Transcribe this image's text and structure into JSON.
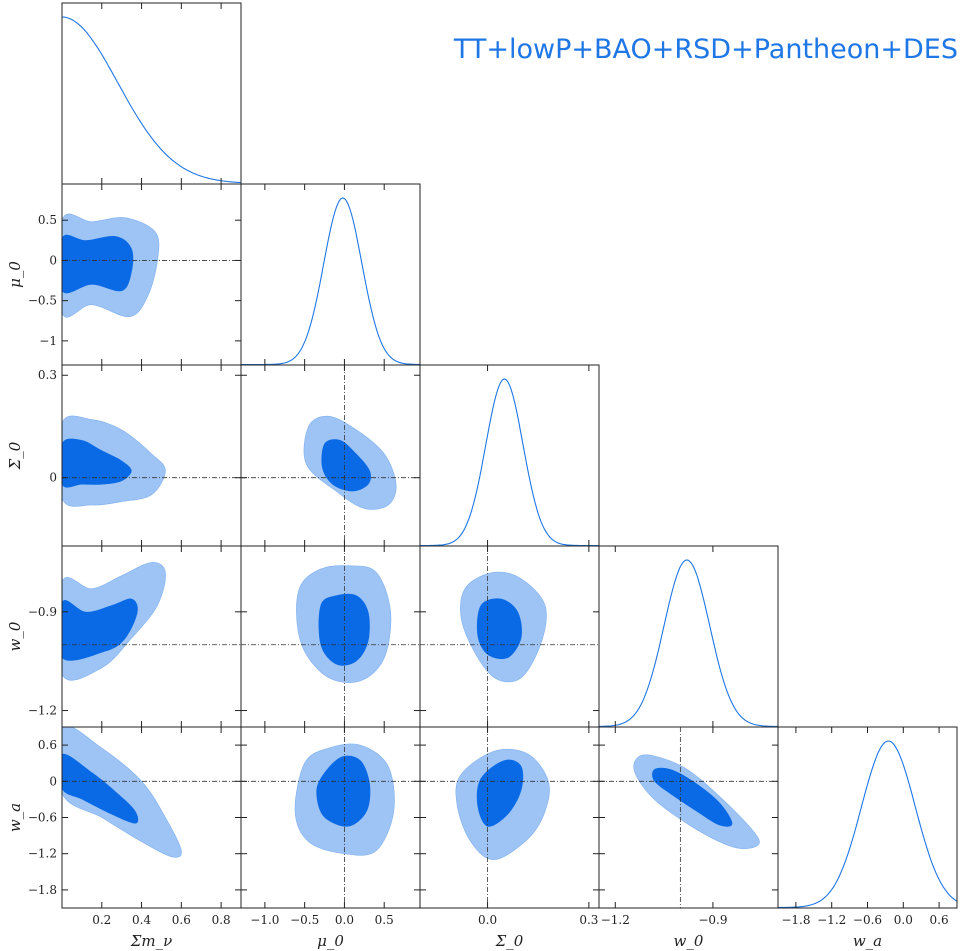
{
  "chart_data": {
    "type": "triangle-corner",
    "legend": {
      "label": "TT+lowP+BAO+RSD+Pantheon+DES",
      "color": "#1f77e6",
      "placement": "top-right"
    },
    "colors": {
      "inner": "#0a6ae6",
      "outer": "#9ec4f5",
      "line": "#1f77e6",
      "frame": "#222222",
      "ref": "#333333"
    },
    "parameters": [
      {
        "id": "mnu",
        "label": "Σm_ν",
        "range": [
          0.0,
          0.9
        ],
        "ticks": [
          0.2,
          0.4,
          0.6,
          0.8
        ],
        "tick_labels": [
          "0.2",
          "0.4",
          "0.6",
          "0.8"
        ],
        "fiducial": null
      },
      {
        "id": "mu0",
        "label": "μ_0",
        "range": [
          -1.3,
          0.95
        ],
        "ticks": [
          -1.0,
          -0.5,
          0.0,
          0.5
        ],
        "tick_labels": [
          "−1.0",
          "−0.5",
          "0.0",
          "0.5"
        ],
        "y_ticks": [
          0.5,
          0.0,
          -0.5,
          -1.0
        ],
        "y_tick_labels": [
          "0.5",
          "0",
          "−0.5",
          "−1"
        ],
        "fiducial": 0
      },
      {
        "id": "sigma0",
        "label": "Σ_0",
        "range": [
          -0.2,
          0.33
        ],
        "ticks": [
          0.0,
          0.3
        ],
        "tick_labels": [
          "0.0",
          "0.3"
        ],
        "y_ticks": [
          0.3,
          0.0
        ],
        "y_tick_labels": [
          "0.3",
          "0"
        ],
        "fiducial": 0
      },
      {
        "id": "w0",
        "label": "w_0",
        "range": [
          -1.25,
          -0.7
        ],
        "ticks": [
          -1.2,
          -0.9
        ],
        "tick_labels": [
          "−1.2",
          "−0.9"
        ],
        "y_ticks": [
          -0.9,
          -1.2
        ],
        "y_tick_labels": [
          "−0.9",
          "−1.2"
        ],
        "fiducial": -1
      },
      {
        "id": "wa",
        "label": "w_a",
        "range": [
          -2.1,
          0.9
        ],
        "ticks": [
          -1.8,
          -1.2,
          -0.6,
          0.0,
          0.6
        ],
        "tick_labels": [
          "−1.8",
          "−1.2",
          "−0.6",
          "0.0",
          "0.6"
        ],
        "y_ticks": [
          0.6,
          0.0,
          -0.6,
          -1.2,
          -1.8
        ],
        "y_tick_labels": [
          "0.6",
          "0",
          "−0.6",
          "−1.2",
          "−1.8"
        ],
        "fiducial": 0
      }
    ],
    "marginals": [
      {
        "param": "mnu",
        "kind": "half-gaussian",
        "mean": 0.0,
        "sd": 0.28
      },
      {
        "param": "mu0",
        "kind": "gaussian",
        "mean": -0.02,
        "sd": 0.24
      },
      {
        "param": "sigma0",
        "kind": "gaussian",
        "mean": 0.05,
        "sd": 0.055
      },
      {
        "param": "w0",
        "kind": "gaussian",
        "mean": -0.98,
        "sd": 0.07
      },
      {
        "param": "wa",
        "kind": "gaussian",
        "mean": -0.25,
        "sd": 0.45
      }
    ],
    "contours": [
      {
        "x": "mnu",
        "y": "mu0",
        "outer": [
          [
            0.0,
            0.5
          ],
          [
            0.15,
            0.48
          ],
          [
            0.32,
            0.53
          ],
          [
            0.47,
            0.35
          ],
          [
            0.48,
            0.0
          ],
          [
            0.43,
            -0.45
          ],
          [
            0.34,
            -0.7
          ],
          [
            0.15,
            -0.55
          ],
          [
            0.0,
            -0.65
          ]
        ],
        "inner": [
          [
            0.0,
            0.28
          ],
          [
            0.12,
            0.25
          ],
          [
            0.27,
            0.3
          ],
          [
            0.35,
            0.15
          ],
          [
            0.35,
            -0.15
          ],
          [
            0.3,
            -0.38
          ],
          [
            0.15,
            -0.3
          ],
          [
            0.0,
            -0.38
          ]
        ]
      },
      {
        "x": "mnu",
        "y": "sigma0",
        "outer": [
          [
            0.0,
            0.16
          ],
          [
            0.15,
            0.17
          ],
          [
            0.3,
            0.14
          ],
          [
            0.45,
            0.07
          ],
          [
            0.52,
            0.02
          ],
          [
            0.45,
            -0.05
          ],
          [
            0.3,
            -0.07
          ],
          [
            0.15,
            -0.08
          ],
          [
            0.0,
            -0.06
          ]
        ],
        "inner": [
          [
            0.0,
            0.1
          ],
          [
            0.1,
            0.11
          ],
          [
            0.2,
            0.08
          ],
          [
            0.3,
            0.05
          ],
          [
            0.35,
            0.02
          ],
          [
            0.3,
            -0.01
          ],
          [
            0.2,
            -0.02
          ],
          [
            0.1,
            -0.02
          ],
          [
            0.0,
            -0.02
          ]
        ]
      },
      {
        "x": "mnu",
        "y": "w0",
        "outer": [
          [
            0.0,
            -0.81
          ],
          [
            0.15,
            -0.83
          ],
          [
            0.3,
            -0.79
          ],
          [
            0.45,
            -0.75
          ],
          [
            0.52,
            -0.78
          ],
          [
            0.48,
            -0.88
          ],
          [
            0.35,
            -0.98
          ],
          [
            0.2,
            -1.07
          ],
          [
            0.0,
            -1.09
          ]
        ],
        "inner": [
          [
            0.0,
            -0.87
          ],
          [
            0.12,
            -0.9
          ],
          [
            0.25,
            -0.88
          ],
          [
            0.35,
            -0.86
          ],
          [
            0.38,
            -0.9
          ],
          [
            0.32,
            -0.98
          ],
          [
            0.22,
            -1.02
          ],
          [
            0.0,
            -1.04
          ]
        ]
      },
      {
        "x": "mnu",
        "y": "wa",
        "outer": [
          [
            0.0,
            0.9
          ],
          [
            0.2,
            0.55
          ],
          [
            0.4,
            0.0
          ],
          [
            0.52,
            -0.6
          ],
          [
            0.6,
            -1.15
          ],
          [
            0.55,
            -1.25
          ],
          [
            0.4,
            -1.0
          ],
          [
            0.2,
            -0.6
          ],
          [
            0.0,
            -0.2
          ]
        ],
        "inner": [
          [
            0.0,
            0.45
          ],
          [
            0.15,
            0.15
          ],
          [
            0.28,
            -0.2
          ],
          [
            0.37,
            -0.5
          ],
          [
            0.37,
            -0.7
          ],
          [
            0.25,
            -0.55
          ],
          [
            0.1,
            -0.3
          ],
          [
            0.0,
            -0.12
          ]
        ]
      },
      {
        "x": "mu0",
        "y": "sigma0",
        "outer": [
          [
            -0.45,
            0.15
          ],
          [
            -0.2,
            0.18
          ],
          [
            0.15,
            0.14
          ],
          [
            0.5,
            0.07
          ],
          [
            0.65,
            -0.02
          ],
          [
            0.55,
            -0.08
          ],
          [
            0.25,
            -0.09
          ],
          [
            -0.1,
            -0.04
          ],
          [
            -0.48,
            0.04
          ]
        ],
        "inner": [
          [
            -0.25,
            0.1
          ],
          [
            -0.05,
            0.11
          ],
          [
            0.15,
            0.07
          ],
          [
            0.32,
            0.02
          ],
          [
            0.3,
            -0.02
          ],
          [
            0.1,
            -0.04
          ],
          [
            -0.15,
            -0.02
          ],
          [
            -0.28,
            0.03
          ]
        ]
      },
      {
        "x": "mu0",
        "y": "w0",
        "outer": [
          [
            -0.55,
            -0.82
          ],
          [
            -0.3,
            -0.77
          ],
          [
            0.05,
            -0.76
          ],
          [
            0.4,
            -0.78
          ],
          [
            0.58,
            -0.9
          ],
          [
            0.5,
            -1.04
          ],
          [
            0.2,
            -1.11
          ],
          [
            -0.2,
            -1.1
          ],
          [
            -0.5,
            -1.02
          ],
          [
            -0.6,
            -0.92
          ]
        ],
        "inner": [
          [
            -0.3,
            -0.88
          ],
          [
            -0.1,
            -0.85
          ],
          [
            0.15,
            -0.85
          ],
          [
            0.3,
            -0.9
          ],
          [
            0.3,
            -0.99
          ],
          [
            0.15,
            -1.05
          ],
          [
            -0.1,
            -1.06
          ],
          [
            -0.3,
            -1.0
          ]
        ]
      },
      {
        "x": "mu0",
        "y": "wa",
        "outer": [
          [
            -0.5,
            0.3
          ],
          [
            -0.2,
            0.55
          ],
          [
            0.2,
            0.6
          ],
          [
            0.55,
            0.25
          ],
          [
            0.62,
            -0.5
          ],
          [
            0.4,
            -1.15
          ],
          [
            0.0,
            -1.2
          ],
          [
            -0.45,
            -1.0
          ],
          [
            -0.62,
            -0.5
          ]
        ],
        "inner": [
          [
            -0.3,
            0.05
          ],
          [
            -0.05,
            0.4
          ],
          [
            0.2,
            0.35
          ],
          [
            0.32,
            -0.05
          ],
          [
            0.28,
            -0.5
          ],
          [
            0.05,
            -0.75
          ],
          [
            -0.25,
            -0.6
          ],
          [
            -0.35,
            -0.25
          ]
        ]
      },
      {
        "x": "sigma0",
        "y": "w0",
        "outer": [
          [
            -0.06,
            -0.82
          ],
          [
            0.02,
            -0.78
          ],
          [
            0.1,
            -0.8
          ],
          [
            0.17,
            -0.88
          ],
          [
            0.16,
            -0.99
          ],
          [
            0.1,
            -1.1
          ],
          [
            0.02,
            -1.1
          ],
          [
            -0.05,
            -1.0
          ],
          [
            -0.08,
            -0.9
          ]
        ],
        "inner": [
          [
            -0.02,
            -0.88
          ],
          [
            0.04,
            -0.86
          ],
          [
            0.09,
            -0.9
          ],
          [
            0.1,
            -0.98
          ],
          [
            0.06,
            -1.04
          ],
          [
            0.0,
            -1.03
          ],
          [
            -0.03,
            -0.97
          ]
        ]
      },
      {
        "x": "sigma0",
        "y": "wa",
        "outer": [
          [
            -0.08,
            0.1
          ],
          [
            0.02,
            0.5
          ],
          [
            0.12,
            0.45
          ],
          [
            0.18,
            0.0
          ],
          [
            0.17,
            -0.5
          ],
          [
            0.12,
            -0.95
          ],
          [
            0.02,
            -1.3
          ],
          [
            -0.05,
            -1.0
          ],
          [
            -0.09,
            -0.4
          ]
        ],
        "inner": [
          [
            -0.02,
            0.05
          ],
          [
            0.05,
            0.35
          ],
          [
            0.1,
            0.25
          ],
          [
            0.1,
            -0.15
          ],
          [
            0.06,
            -0.55
          ],
          [
            0.0,
            -0.75
          ],
          [
            -0.03,
            -0.4
          ]
        ]
      },
      {
        "x": "w0",
        "y": "wa",
        "outer": [
          [
            -1.13,
            0.4
          ],
          [
            -1.08,
            0.42
          ],
          [
            -0.98,
            0.2
          ],
          [
            -0.88,
            -0.25
          ],
          [
            -0.78,
            -0.8
          ],
          [
            -0.76,
            -1.05
          ],
          [
            -0.83,
            -1.1
          ],
          [
            -0.95,
            -0.8
          ],
          [
            -1.08,
            -0.3
          ],
          [
            -1.14,
            0.15
          ]
        ],
        "inner": [
          [
            -1.08,
            0.2
          ],
          [
            -1.03,
            0.2
          ],
          [
            -0.96,
            0.0
          ],
          [
            -0.88,
            -0.35
          ],
          [
            -0.84,
            -0.7
          ],
          [
            -0.88,
            -0.73
          ],
          [
            -0.95,
            -0.5
          ],
          [
            -1.02,
            -0.25
          ],
          [
            -1.08,
            0.0
          ]
        ]
      }
    ]
  }
}
